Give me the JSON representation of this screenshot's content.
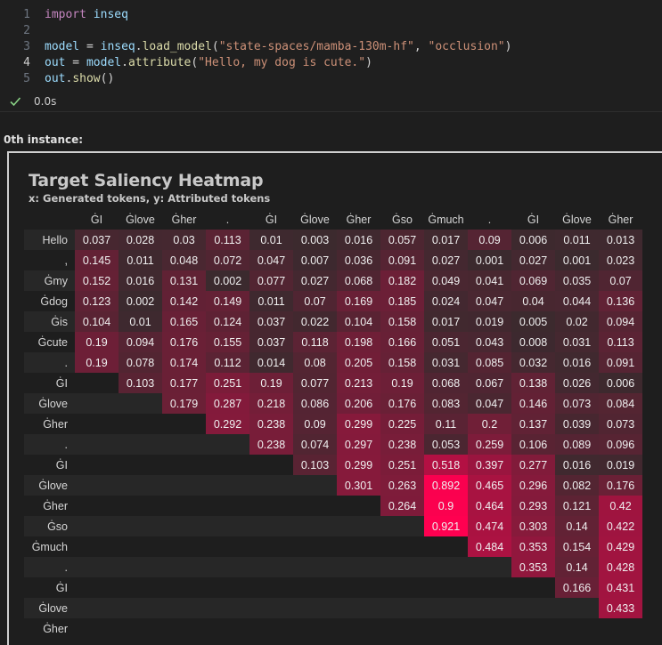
{
  "code": {
    "lines": [
      {
        "num": "1",
        "tokens": [
          {
            "c": "kw",
            "t": "import"
          },
          {
            "c": "op",
            "t": " "
          },
          {
            "c": "id",
            "t": "inseq"
          }
        ]
      },
      {
        "num": "2",
        "tokens": []
      },
      {
        "num": "3",
        "tokens": [
          {
            "c": "id",
            "t": "model"
          },
          {
            "c": "op",
            "t": " = "
          },
          {
            "c": "id",
            "t": "inseq"
          },
          {
            "c": "op",
            "t": "."
          },
          {
            "c": "fn",
            "t": "load_model"
          },
          {
            "c": "op",
            "t": "("
          },
          {
            "c": "str",
            "t": "\"state-spaces/mamba-130m-hf\""
          },
          {
            "c": "op",
            "t": ", "
          },
          {
            "c": "str",
            "t": "\"occlusion\""
          },
          {
            "c": "op",
            "t": ")"
          }
        ]
      },
      {
        "num": "4",
        "tokens": [
          {
            "c": "id",
            "t": "out"
          },
          {
            "c": "op",
            "t": " = "
          },
          {
            "c": "id",
            "t": "model"
          },
          {
            "c": "op",
            "t": "."
          },
          {
            "c": "fn",
            "t": "attribute"
          },
          {
            "c": "op",
            "t": "("
          },
          {
            "c": "str",
            "t": "\"Hello, my dog is cute.\""
          },
          {
            "c": "op",
            "t": ")"
          }
        ]
      },
      {
        "num": "5",
        "tokens": [
          {
            "c": "id",
            "t": "out"
          },
          {
            "c": "op",
            "t": "."
          },
          {
            "c": "fn",
            "t": "show"
          },
          {
            "c": "op",
            "t": "()"
          }
        ]
      }
    ],
    "active_line": "4"
  },
  "execution": {
    "status_icon": "check-icon",
    "time": "0.0s",
    "status_color": "#89d185"
  },
  "output": {
    "instance_label": "0th instance:"
  },
  "chart_data": {
    "type": "heatmap",
    "title": "Target Saliency Heatmap",
    "subtitle": "x: Generated tokens, y: Attributed tokens",
    "x_tokens": [
      "ĠI",
      "Ġlove",
      "Ġher",
      ".",
      "ĠI",
      "Ġlove",
      "Ġher",
      "Ġso",
      "Ġmuch",
      ".",
      "ĠI",
      "Ġlove",
      "Ġher"
    ],
    "y_tokens": [
      "Hello",
      ",",
      "Ġmy",
      "Ġdog",
      "Ġis",
      "Ġcute",
      ".",
      "ĠI",
      "Ġlove",
      "Ġher",
      ".",
      "ĠI",
      "Ġlove",
      "Ġher",
      "Ġso",
      "Ġmuch",
      ".",
      "ĠI",
      "Ġlove",
      "Ġher"
    ],
    "values": [
      [
        "0.037",
        "0.028",
        "0.03",
        "0.113",
        "0.01",
        "0.003",
        "0.016",
        "0.057",
        "0.017",
        "0.09",
        "0.006",
        "0.011",
        "0.013"
      ],
      [
        "0.145",
        "0.011",
        "0.048",
        "0.072",
        "0.047",
        "0.007",
        "0.036",
        "0.091",
        "0.027",
        "0.001",
        "0.027",
        "0.001",
        "0.023"
      ],
      [
        "0.152",
        "0.016",
        "0.131",
        "0.002",
        "0.077",
        "0.027",
        "0.068",
        "0.182",
        "0.049",
        "0.041",
        "0.069",
        "0.035",
        "0.07"
      ],
      [
        "0.123",
        "0.002",
        "0.142",
        "0.149",
        "0.011",
        "0.07",
        "0.169",
        "0.185",
        "0.024",
        "0.047",
        "0.04",
        "0.044",
        "0.136"
      ],
      [
        "0.104",
        "0.01",
        "0.165",
        "0.124",
        "0.037",
        "0.022",
        "0.104",
        "0.158",
        "0.017",
        "0.019",
        "0.005",
        "0.02",
        "0.094"
      ],
      [
        "0.19",
        "0.094",
        "0.176",
        "0.155",
        "0.037",
        "0.118",
        "0.198",
        "0.166",
        "0.051",
        "0.043",
        "0.008",
        "0.031",
        "0.113"
      ],
      [
        "0.19",
        "0.078",
        "0.174",
        "0.112",
        "0.014",
        "0.08",
        "0.205",
        "0.158",
        "0.031",
        "0.085",
        "0.032",
        "0.016",
        "0.091"
      ],
      [
        "",
        "0.103",
        "0.177",
        "0.251",
        "0.19",
        "0.077",
        "0.213",
        "0.19",
        "0.068",
        "0.067",
        "0.138",
        "0.026",
        "0.006"
      ],
      [
        "",
        "",
        "0.179",
        "0.287",
        "0.218",
        "0.086",
        "0.206",
        "0.176",
        "0.083",
        "0.047",
        "0.146",
        "0.073",
        "0.084"
      ],
      [
        "",
        "",
        "",
        "0.292",
        "0.238",
        "0.09",
        "0.299",
        "0.225",
        "0.11",
        "0.2",
        "0.137",
        "0.039",
        "0.073"
      ],
      [
        "",
        "",
        "",
        "",
        "0.238",
        "0.074",
        "0.297",
        "0.238",
        "0.053",
        "0.259",
        "0.106",
        "0.089",
        "0.096"
      ],
      [
        "",
        "",
        "",
        "",
        "",
        "0.103",
        "0.299",
        "0.251",
        "0.518",
        "0.397",
        "0.277",
        "0.016",
        "0.019"
      ],
      [
        "",
        "",
        "",
        "",
        "",
        "",
        "0.301",
        "0.263",
        "0.892",
        "0.465",
        "0.296",
        "0.082",
        "0.176"
      ],
      [
        "",
        "",
        "",
        "",
        "",
        "",
        "",
        "0.264",
        "0.9",
        "0.464",
        "0.293",
        "0.121",
        "0.42"
      ],
      [
        "",
        "",
        "",
        "",
        "",
        "",
        "",
        "",
        "0.921",
        "0.474",
        "0.303",
        "0.14",
        "0.422"
      ],
      [
        "",
        "",
        "",
        "",
        "",
        "",
        "",
        "",
        "",
        "0.484",
        "0.353",
        "0.154",
        "0.429"
      ],
      [
        "",
        "",
        "",
        "",
        "",
        "",
        "",
        "",
        "",
        "",
        "0.353",
        "0.14",
        "0.428"
      ],
      [
        "",
        "",
        "",
        "",
        "",
        "",
        "",
        "",
        "",
        "",
        "",
        "0.166",
        "0.431"
      ],
      [
        "",
        "",
        "",
        "",
        "",
        "",
        "",
        "",
        "",
        "",
        "",
        "",
        "0.433"
      ],
      [
        "",
        "",
        "",
        "",
        "",
        "",
        "",
        "",
        "",
        "",
        "",
        "",
        ""
      ]
    ],
    "color_scale": {
      "low": "#3a2a2e",
      "high": "#ff0050",
      "max_value": 0.921
    }
  }
}
